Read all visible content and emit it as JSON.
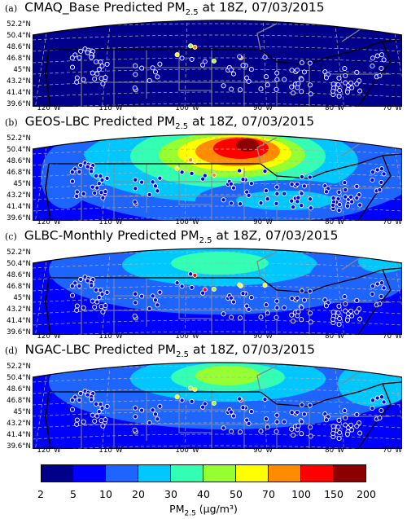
{
  "panels": [
    {
      "label": "(a)",
      "title_pre": "CMAQ_Base Predicted PM",
      "title_sub": "2.5",
      "title_post": " at 18Z, 07/03/2015",
      "scenario": "base"
    },
    {
      "label": "(b)",
      "title_pre": "GEOS-LBC Predicted PM",
      "title_sub": "2.5",
      "title_post": " at 18Z, 07/03/2015",
      "scenario": "geos"
    },
    {
      "label": "(c)",
      "title_pre": "GLBC-Monthly Predicted PM",
      "title_sub": "2.5",
      "title_post": " at 18Z, 07/03/2015",
      "scenario": "monthly"
    },
    {
      "label": "(d)",
      "title_pre": "NGAC-LBC Predicted PM",
      "title_sub": "2.5",
      "title_post": " at 18Z, 07/03/2015",
      "scenario": "ngac"
    }
  ],
  "lat_labels": [
    "52.2°N",
    "50.4°N",
    "48.6°N",
    "46.8°N",
    "45°N",
    "43.2°N",
    "41.4°N",
    "39.6°N"
  ],
  "lon_labels": [
    "120°W",
    "110°W",
    "100°W",
    "90°W",
    "80°W",
    "70°W"
  ],
  "colorbar": {
    "ticks": [
      "2",
      "5",
      "10",
      "20",
      "30",
      "40",
      "50",
      "70",
      "100",
      "150",
      "200"
    ],
    "colors": [
      "#00008b",
      "#0000ff",
      "#1e64ff",
      "#00c8ff",
      "#32ffb4",
      "#96ff32",
      "#ffff00",
      "#ff8c00",
      "#ff0000",
      "#8b0000"
    ],
    "unit_pre": "PM",
    "unit_sub": "2.5",
    "unit_post": " (μg/m³)"
  }
}
